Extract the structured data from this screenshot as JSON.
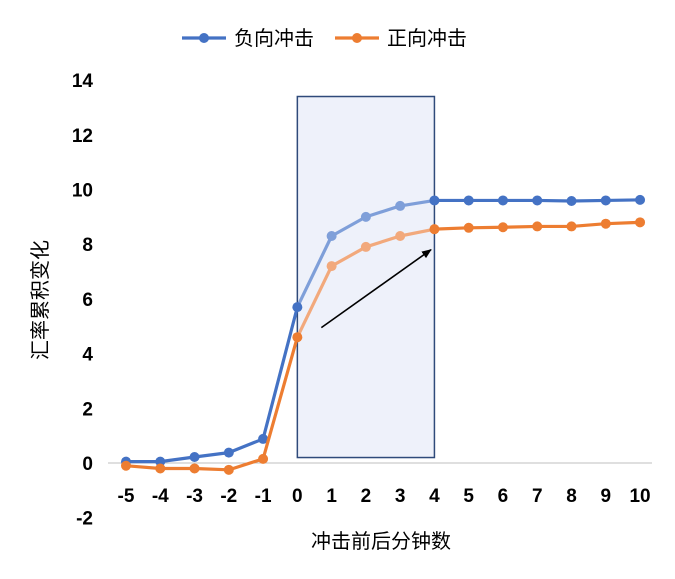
{
  "chart_data": {
    "type": "line",
    "title": "",
    "xlabel": "冲击前后分钟数",
    "ylabel": "汇率累积变化",
    "x": [
      -5,
      -4,
      -3,
      -2,
      -1,
      0,
      1,
      2,
      3,
      4,
      5,
      6,
      7,
      8,
      9,
      10
    ],
    "x_tick_labels": [
      "-5",
      "-4",
      "-3",
      "-2",
      "-1",
      "0",
      "1",
      "2",
      "3",
      "4",
      "5",
      "6",
      "7",
      "8",
      "9",
      "10"
    ],
    "ylim": [
      -2,
      14
    ],
    "y_ticks": [
      -2,
      0,
      2,
      4,
      6,
      8,
      10,
      12,
      14
    ],
    "y_tick_labels": [
      "-2",
      "0",
      "2",
      "4",
      "6",
      "8",
      "10",
      "12",
      "14"
    ],
    "grid": false,
    "legend_position": "top-center",
    "series": [
      {
        "name": "负向冲击",
        "color": "#4472C4",
        "highlight_color": "#7F9FD9",
        "values": [
          0.05,
          0.05,
          0.22,
          0.38,
          0.88,
          5.7,
          8.3,
          9.0,
          9.4,
          9.6,
          9.6,
          9.6,
          9.6,
          9.58,
          9.6,
          9.62
        ]
      },
      {
        "name": "正向冲击",
        "color": "#ED7D31",
        "highlight_color": "#F2A97C",
        "values": [
          -0.1,
          -0.2,
          -0.2,
          -0.25,
          0.15,
          4.6,
          7.2,
          7.9,
          8.3,
          8.55,
          8.6,
          8.62,
          8.65,
          8.65,
          8.75,
          8.8
        ]
      }
    ],
    "highlight_region": {
      "x_from": 0,
      "x_to": 4,
      "y_from": 0.2,
      "y_to": 13.4,
      "fill": "#EEF1FA",
      "stroke": "#2F4A7A"
    },
    "annotations": [
      {
        "type": "arrow",
        "from": [
          0.7,
          4.95
        ],
        "to": [
          3.9,
          7.8
        ],
        "color": "#000000"
      }
    ]
  }
}
